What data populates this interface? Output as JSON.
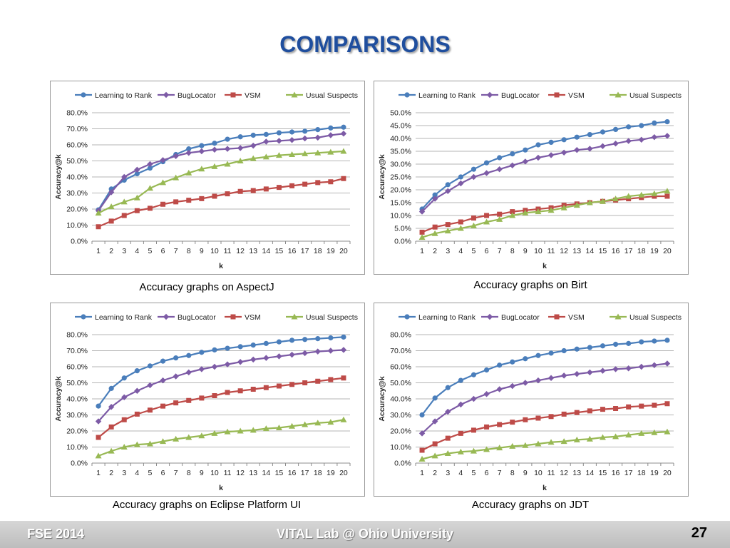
{
  "slide": {
    "title": "COMPARISONS",
    "footer_left": "FSE 2014",
    "footer_center": "VITAL Lab @ Ohio University",
    "page_number": "27",
    "title_color": "#1f4e9e"
  },
  "series_colors": [
    "#4a7ebb",
    "#7d5ba6",
    "#be4b48",
    "#98b954"
  ],
  "series_markers": [
    "circle",
    "diamond",
    "square",
    "triangle"
  ],
  "chart_data": [
    {
      "type": "line",
      "caption": "Accuracy graphs on AspectJ",
      "xlabel": "k",
      "ylabel": "Accuracy@k",
      "x": [
        1,
        2,
        3,
        4,
        5,
        6,
        7,
        8,
        9,
        10,
        11,
        12,
        13,
        14,
        15,
        16,
        17,
        18,
        19,
        20
      ],
      "ylim": [
        0,
        80
      ],
      "ytick_step": 10,
      "yticks": [
        "0.0%",
        "10.0%",
        "20.0%",
        "30.0%",
        "40.0%",
        "50.0%",
        "60.0%",
        "70.0%",
        "80.0%"
      ],
      "grid": true,
      "legend": "top",
      "series": [
        {
          "name": "Learning to Rank",
          "values": [
            19.5,
            32.5,
            38,
            42,
            45.5,
            49.5,
            54,
            57.5,
            59.5,
            61,
            63.5,
            65,
            66,
            66.5,
            67.5,
            68,
            68.5,
            69.5,
            70.5,
            71
          ]
        },
        {
          "name": "BugLocator",
          "values": [
            19,
            30.5,
            40,
            44.5,
            48,
            50.5,
            53,
            55,
            56,
            57,
            57.5,
            58,
            59.5,
            62,
            62.5,
            63,
            64,
            64.5,
            66,
            67
          ]
        },
        {
          "name": "VSM",
          "values": [
            9,
            12.5,
            16,
            19,
            20.5,
            23,
            24.5,
            25.5,
            26.5,
            28,
            29.5,
            31,
            31.5,
            32.5,
            33.5,
            34.5,
            35.5,
            36.5,
            37,
            39
          ]
        },
        {
          "name": "Usual Suspects",
          "values": [
            17.5,
            21.5,
            24.5,
            27,
            33,
            36.5,
            39.5,
            42.5,
            45,
            46.5,
            48,
            50,
            51.5,
            52.5,
            53.5,
            54,
            54.5,
            55,
            55.5,
            56
          ]
        }
      ]
    },
    {
      "type": "line",
      "caption": "Accuracy graphs on Birt",
      "xlabel": "k",
      "ylabel": "Accuracy@k",
      "x": [
        1,
        2,
        3,
        4,
        5,
        6,
        7,
        8,
        9,
        10,
        11,
        12,
        13,
        14,
        15,
        16,
        17,
        18,
        19,
        20
      ],
      "ylim": [
        0,
        50
      ],
      "ytick_step": 5,
      "yticks": [
        "0.0%",
        "5.0%",
        "10.0%",
        "15.0%",
        "20.0%",
        "25.0%",
        "30.0%",
        "35.0%",
        "40.0%",
        "45.0%",
        "50.0%"
      ],
      "grid": true,
      "legend": "top",
      "series": [
        {
          "name": "Learning to Rank",
          "values": [
            12.5,
            18,
            22,
            25,
            28,
            30.5,
            32.5,
            34,
            35.5,
            37.5,
            38.5,
            39.5,
            40.5,
            41.5,
            42.5,
            43.5,
            44.5,
            45,
            46,
            46.5
          ]
        },
        {
          "name": "BugLocator",
          "values": [
            11.5,
            16.5,
            19.5,
            22.5,
            25,
            26.5,
            28,
            29.5,
            31,
            32.5,
            33.5,
            34.5,
            35.5,
            36,
            37,
            38,
            39,
            39.5,
            40.5,
            41
          ]
        },
        {
          "name": "VSM",
          "values": [
            3.5,
            5.5,
            6.5,
            7.5,
            9,
            10,
            10.5,
            11.5,
            12,
            12.5,
            13,
            14,
            14.5,
            15,
            15.5,
            16,
            16.5,
            17,
            17.5,
            17.5
          ]
        },
        {
          "name": "Usual Suspects",
          "values": [
            1.5,
            3,
            4,
            5,
            6,
            7.5,
            8.5,
            10,
            11,
            11.5,
            12,
            13,
            14,
            15,
            15.5,
            16.5,
            17.5,
            18,
            18.5,
            19.5
          ]
        }
      ]
    },
    {
      "type": "line",
      "caption": "Accuracy graphs on Eclipse Platform UI",
      "xlabel": "k",
      "ylabel": "Accuracy@k",
      "x": [
        1,
        2,
        3,
        4,
        5,
        6,
        7,
        8,
        9,
        10,
        11,
        12,
        13,
        14,
        15,
        16,
        17,
        18,
        19,
        20
      ],
      "ylim": [
        0,
        80
      ],
      "ytick_step": 10,
      "yticks": [
        "0.0%",
        "10.0%",
        "20.0%",
        "30.0%",
        "40.0%",
        "50.0%",
        "60.0%",
        "70.0%",
        "80.0%"
      ],
      "grid": true,
      "legend": "top",
      "series": [
        {
          "name": "Learning to Rank",
          "values": [
            35.5,
            46.5,
            53,
            57.5,
            60.5,
            63.5,
            65.5,
            67,
            69,
            70.5,
            71.5,
            72.5,
            73.5,
            74.5,
            75.5,
            76.5,
            77,
            77.5,
            78,
            78.5
          ]
        },
        {
          "name": "BugLocator",
          "values": [
            26,
            35,
            41,
            45,
            48.5,
            51.5,
            54,
            56.5,
            58.5,
            60,
            61.5,
            63,
            64.5,
            65.5,
            66.5,
            67.5,
            68.5,
            69.5,
            70,
            70.5
          ]
        },
        {
          "name": "VSM",
          "values": [
            16,
            22.5,
            27,
            30.5,
            33,
            35.5,
            37.5,
            39,
            40.5,
            42,
            44,
            45,
            46,
            47,
            48,
            49,
            50,
            51,
            52,
            53
          ]
        },
        {
          "name": "Usual Suspects",
          "values": [
            4.5,
            7.5,
            10,
            11.5,
            12,
            13.5,
            15,
            16,
            17,
            18.5,
            19.5,
            20,
            20.5,
            21.5,
            22,
            23,
            24,
            25,
            25.5,
            27
          ]
        }
      ]
    },
    {
      "type": "line",
      "caption": "Accuracy graphs on JDT",
      "xlabel": "k",
      "ylabel": "Accuracy@k",
      "x": [
        1,
        2,
        3,
        4,
        5,
        6,
        7,
        8,
        9,
        10,
        11,
        12,
        13,
        14,
        15,
        16,
        17,
        18,
        19,
        20
      ],
      "ylim": [
        0,
        80
      ],
      "ytick_step": 10,
      "yticks": [
        "0.0%",
        "10.0%",
        "20.0%",
        "30.0%",
        "40.0%",
        "50.0%",
        "60.0%",
        "70.0%",
        "80.0%"
      ],
      "grid": true,
      "legend": "top",
      "series": [
        {
          "name": "Learning to Rank",
          "values": [
            30,
            40.5,
            47,
            51.5,
            55,
            58,
            61,
            63,
            65,
            67,
            68.5,
            70,
            71,
            72,
            73,
            74,
            74.5,
            75.5,
            76,
            76.5
          ]
        },
        {
          "name": "BugLocator",
          "values": [
            18.5,
            26,
            32,
            36.5,
            40,
            43,
            46,
            48,
            50,
            51.5,
            53,
            54.5,
            55.5,
            56.5,
            57.5,
            58.5,
            59,
            60,
            61,
            62
          ]
        },
        {
          "name": "VSM",
          "values": [
            8,
            12,
            15.5,
            18.5,
            20.5,
            22.5,
            24,
            25.5,
            27,
            28,
            29,
            30.5,
            31.5,
            32.5,
            33.5,
            34,
            35,
            35.5,
            36,
            37
          ]
        },
        {
          "name": "Usual Suspects",
          "values": [
            2.5,
            4.5,
            6,
            7,
            7.5,
            8.5,
            9.5,
            10.5,
            11,
            12,
            13,
            13.5,
            14.5,
            15,
            16,
            16.5,
            17.5,
            18.5,
            19,
            19.5
          ]
        }
      ]
    }
  ]
}
